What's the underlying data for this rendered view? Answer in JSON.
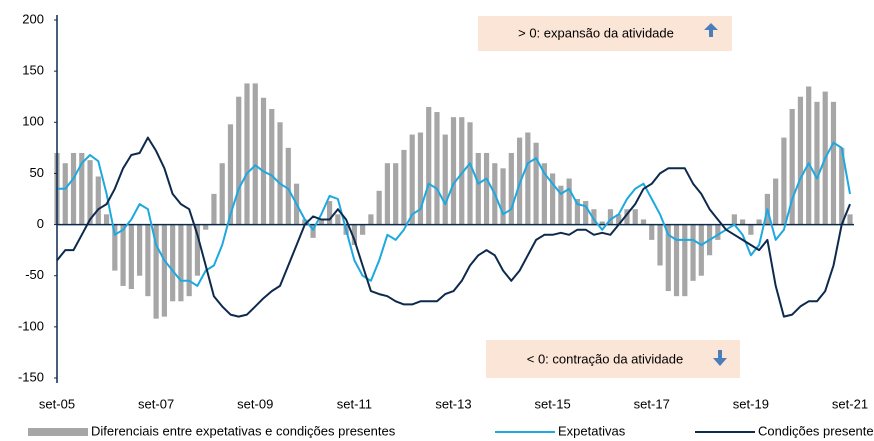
{
  "chart_data": {
    "type": "bar_line",
    "annotations": {
      "positive": "> 0: expansão da atividade",
      "negative": "< 0: contração da atividade"
    },
    "categories": [
      "set-05",
      null,
      null,
      null,
      null,
      null,
      null,
      null,
      null,
      null,
      null,
      null,
      "set-07",
      null,
      null,
      null,
      null,
      null,
      null,
      null,
      null,
      null,
      null,
      null,
      "set-09",
      null,
      null,
      null,
      null,
      null,
      null,
      null,
      null,
      null,
      null,
      null,
      "set-11",
      null,
      null,
      null,
      null,
      null,
      null,
      null,
      null,
      null,
      null,
      null,
      "set-13",
      null,
      null,
      null,
      null,
      null,
      null,
      null,
      null,
      null,
      null,
      null,
      "set-15",
      null,
      null,
      null,
      null,
      null,
      null,
      null,
      null,
      null,
      null,
      null,
      "set-17",
      null,
      null,
      null,
      null,
      null,
      null,
      null,
      null,
      null,
      null,
      null,
      "set-19",
      null,
      null,
      null,
      null,
      null,
      null,
      null,
      null,
      null,
      null,
      null,
      "set-21"
    ],
    "series": [
      {
        "name": "Diferenciais entre expetativas e condições presentes",
        "kind": "bar",
        "color": "#a6a6a6",
        "values": [
          70,
          60,
          70,
          70,
          63,
          47,
          10,
          -45,
          -60,
          -63,
          -50,
          -70,
          -92,
          -90,
          -75,
          -75,
          -70,
          -50,
          -5,
          30,
          60,
          98,
          125,
          138,
          138,
          124,
          113,
          100,
          75,
          40,
          5,
          -13,
          5,
          23,
          10,
          -10,
          -20,
          -10,
          10,
          33,
          60,
          60,
          73,
          88,
          90,
          115,
          110,
          88,
          105,
          105,
          100,
          70,
          70,
          60,
          55,
          70,
          85,
          90,
          80,
          60,
          50,
          38,
          45,
          25,
          23,
          15,
          3,
          15,
          10,
          15,
          15,
          5,
          -15,
          -40,
          -65,
          -70,
          -70,
          -55,
          -50,
          -30,
          -15,
          0,
          10,
          5,
          -10,
          5,
          30,
          45,
          85,
          113,
          125,
          135,
          120,
          130,
          120,
          75,
          10
        ]
      },
      {
        "name": "Expetativas",
        "kind": "line",
        "color": "#1ea8e0",
        "values": [
          35,
          35,
          45,
          60,
          68,
          62,
          30,
          -10,
          -5,
          5,
          20,
          15,
          -20,
          -35,
          -45,
          -55,
          -55,
          -60,
          -45,
          -40,
          -20,
          10,
          35,
          50,
          58,
          52,
          48,
          40,
          35,
          20,
          5,
          -5,
          10,
          28,
          25,
          -5,
          -35,
          -50,
          -55,
          -35,
          -10,
          -15,
          -5,
          10,
          15,
          40,
          35,
          20,
          40,
          50,
          60,
          40,
          45,
          30,
          10,
          15,
          40,
          60,
          65,
          50,
          40,
          30,
          35,
          20,
          18,
          5,
          -5,
          5,
          10,
          25,
          35,
          40,
          25,
          10,
          -10,
          -15,
          -15,
          -15,
          -20,
          -15,
          -10,
          -5,
          0,
          -10,
          -30,
          -20,
          15,
          -15,
          -5,
          25,
          45,
          60,
          45,
          65,
          80,
          75,
          30
        ]
      },
      {
        "name": "Condições presentes",
        "kind": "line",
        "color": "#0d2a4d",
        "values": [
          -35,
          -25,
          -25,
          -10,
          5,
          15,
          20,
          35,
          55,
          68,
          70,
          85,
          72,
          55,
          30,
          20,
          15,
          -10,
          -40,
          -70,
          -80,
          -88,
          -90,
          -88,
          -80,
          -72,
          -65,
          -60,
          -40,
          -20,
          0,
          8,
          5,
          5,
          15,
          5,
          -15,
          -40,
          -65,
          -68,
          -70,
          -75,
          -78,
          -78,
          -75,
          -75,
          -75,
          -68,
          -65,
          -55,
          -40,
          -30,
          -25,
          -30,
          -45,
          -55,
          -45,
          -30,
          -15,
          -10,
          -10,
          -8,
          -10,
          -5,
          -5,
          -10,
          -8,
          -10,
          0,
          10,
          20,
          35,
          40,
          50,
          55,
          55,
          55,
          40,
          30,
          15,
          5,
          -5,
          -10,
          -15,
          -20,
          -25,
          -15,
          -60,
          -90,
          -88,
          -80,
          -75,
          -75,
          -65,
          -40,
          0,
          20
        ]
      }
    ],
    "ylim": [
      -150,
      200
    ],
    "yticks": [
      -150,
      -100,
      -50,
      0,
      50,
      100,
      150,
      200
    ]
  }
}
